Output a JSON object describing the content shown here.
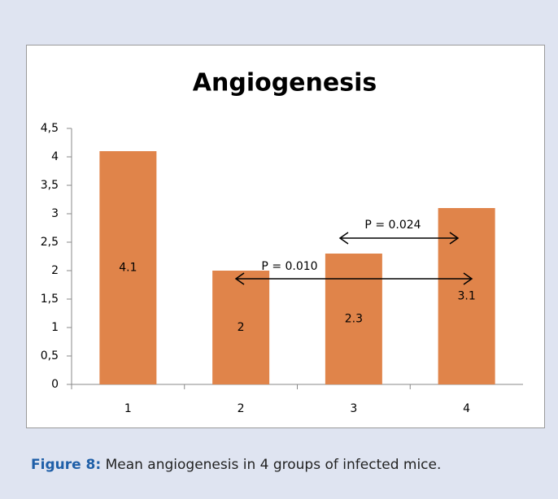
{
  "chart_data": {
    "type": "bar",
    "title": "Angiogenesis",
    "categories": [
      "1",
      "2",
      "3",
      "4"
    ],
    "values": [
      4.1,
      2,
      2.3,
      3.1
    ],
    "color": "#e0844a",
    "ylim": [
      0,
      4.5
    ],
    "yticks": [
      0,
      {
        "value": 0.5,
        "label": "0,5"
      },
      1,
      {
        "value": 1.5,
        "label": "1,5"
      },
      2,
      {
        "value": 2.5,
        "label": "2,5"
      },
      3,
      {
        "value": 3.5,
        "label": "3,5"
      },
      4,
      {
        "value": 4.5,
        "label": "4,5"
      }
    ],
    "grid": false,
    "annotations": [
      "P = 0.024",
      "P = 0.010"
    ]
  },
  "caption": {
    "label": "Figure 8:",
    "text": "Mean angiogenesis in 4 groups of infected mice."
  }
}
